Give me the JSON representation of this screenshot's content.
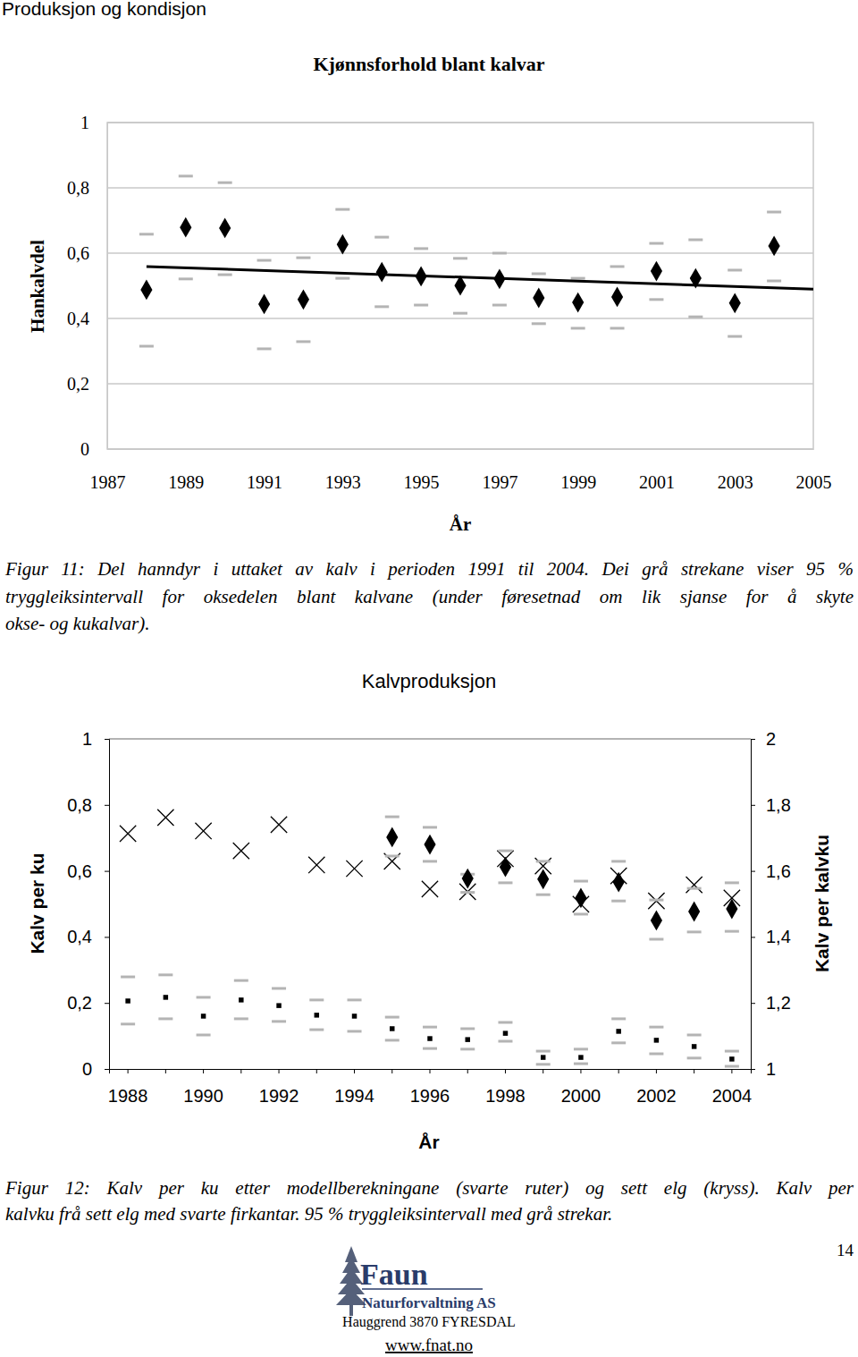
{
  "page": {
    "header": "Produksjon og kondisjon",
    "captions": [
      [
        "Figur 11: Del hanndyr i uttaket av kalv i perioden 1991 til 2004. Dei grå strekane viser 95 %",
        "tryggleiksintervall for oksedelen blant kalvane (under føresetnad om lik sjanse for å skyte",
        "okse- og kukalvar)."
      ],
      [
        "Figur 12: Kalv per ku etter modellberekningane (svarte ruter) og sett elg (kryss). Kalv per",
        "kalvku frå sett elg med svarte firkantar. 95 % tryggleiksintervall med grå strekar."
      ]
    ],
    "page_number": "14",
    "logo": {
      "name": "Faun",
      "subtitle": "Naturforvaltning AS"
    },
    "address": "Hauggrend 3870 FYRESDAL",
    "url": "www.fnat.no"
  },
  "chart_data": [
    {
      "type": "scatter",
      "title": "Kjønnsforhold blant kalvar",
      "x_label": "År",
      "y_label": "Hankalvdel",
      "x": [
        1988,
        1989,
        1990,
        1991,
        1992,
        1993,
        1994,
        1995,
        1996,
        1997,
        1998,
        1999,
        2000,
        2001,
        2002,
        2003,
        2004
      ],
      "xlim": [
        1987,
        2005
      ],
      "xticks": [
        1987,
        1989,
        1991,
        1993,
        1995,
        1997,
        1999,
        2001,
        2003,
        2005
      ],
      "ylim": [
        0,
        1
      ],
      "yticks": [
        0,
        {
          "value": 0.2,
          "label": "0,2"
        },
        {
          "value": 0.4,
          "label": "0,4"
        },
        {
          "value": 0.6,
          "label": "0,6"
        },
        {
          "value": 0.8,
          "label": "0,8"
        },
        1
      ],
      "grid": true,
      "series": [
        {
          "type": "scatter",
          "marker": "diamond",
          "color": "#000000",
          "values": [
            0.488,
            0.679,
            0.677,
            0.444,
            0.458,
            0.627,
            0.542,
            0.529,
            0.501,
            0.521,
            0.463,
            0.449,
            0.466,
            0.545,
            0.523,
            0.447,
            0.622
          ],
          "ci_low": [
            0.315,
            0.521,
            0.534,
            0.307,
            0.329,
            0.523,
            0.436,
            0.441,
            0.416,
            0.441,
            0.384,
            0.37,
            0.37,
            0.458,
            0.405,
            0.345,
            0.515
          ],
          "ci_high": [
            0.658,
            0.836,
            0.816,
            0.578,
            0.586,
            0.734,
            0.649,
            0.614,
            0.584,
            0.6,
            0.537,
            0.523,
            0.559,
            0.63,
            0.641,
            0.548,
            0.726
          ]
        },
        {
          "type": "line",
          "line_style": "solid",
          "color": "#000000",
          "x": [
            1988,
            2005
          ],
          "values": [
            0.559,
            0.49
          ]
        }
      ]
    },
    {
      "type": "scatter",
      "title": "Kalvproduksjon",
      "x_label": "År",
      "y_label": "Kalv per ku",
      "y2_label": "Kalv per kalvku",
      "categories": [
        1988,
        null,
        1990,
        null,
        1992,
        null,
        1994,
        null,
        1996,
        null,
        1998,
        null,
        2000,
        null,
        2002,
        null,
        2004
      ],
      "ylim": [
        0,
        1
      ],
      "yticks": [
        0,
        {
          "value": 0.2,
          "label": "0,2"
        },
        {
          "value": 0.4,
          "label": "0,4"
        },
        {
          "value": 0.6,
          "label": "0,6"
        },
        {
          "value": 0.8,
          "label": "0,8"
        },
        1
      ],
      "y2lim": [
        1,
        2
      ],
      "y2ticks": [
        1,
        {
          "value": 1.2,
          "label": "1,2"
        },
        {
          "value": 1.4,
          "label": "1,4"
        },
        {
          "value": 1.6,
          "label": "1,6"
        },
        {
          "value": 1.8,
          "label": "1,8"
        },
        2
      ],
      "grid": false,
      "series": [
        {
          "type": "scatter",
          "marker": "x",
          "color": "#000000",
          "values": [
            0.713,
            0.762,
            0.721,
            0.661,
            0.74,
            0.618,
            0.607,
            0.629,
            0.545,
            0.537,
            0.637,
            0.615,
            0.499,
            0.585,
            0.509,
            0.558,
            0.518
          ]
        },
        {
          "type": "scatter",
          "marker": "diamond",
          "color": "#000000",
          "values": [
            null,
            null,
            null,
            null,
            null,
            null,
            null,
            0.702,
            0.68,
            0.577,
            0.612,
            0.575,
            0.518,
            0.566,
            0.45,
            0.477,
            0.485
          ],
          "ci_low": [
            null,
            null,
            null,
            null,
            null,
            null,
            null,
            0.645,
            0.629,
            0.535,
            0.564,
            0.528,
            0.469,
            0.509,
            0.393,
            0.415,
            0.417
          ],
          "ci_high": [
            null,
            null,
            null,
            null,
            null,
            null,
            null,
            0.764,
            0.732,
            0.59,
            0.661,
            0.629,
            0.569,
            0.629,
            0.512,
            0.547,
            0.564
          ]
        },
        {
          "type": "scatter",
          "marker": "square",
          "color": "#000000",
          "axis": "y2",
          "values": [
            1.206,
            1.217,
            1.16,
            1.209,
            1.192,
            1.163,
            1.16,
            1.122,
            1.092,
            1.089,
            1.108,
            1.035,
            1.035,
            1.114,
            1.087,
            1.068,
            1.03
          ],
          "ci_low": [
            1.136,
            1.152,
            1.103,
            1.152,
            1.144,
            1.119,
            1.114,
            1.087,
            1.062,
            1.06,
            1.084,
            1.014,
            1.016,
            1.079,
            1.046,
            1.033,
            1.008
          ],
          "ci_high": [
            1.279,
            1.285,
            1.217,
            1.268,
            1.244,
            1.209,
            1.209,
            1.157,
            1.127,
            1.122,
            1.141,
            1.054,
            1.06,
            1.152,
            1.127,
            1.103,
            1.054
          ]
        }
      ]
    }
  ]
}
